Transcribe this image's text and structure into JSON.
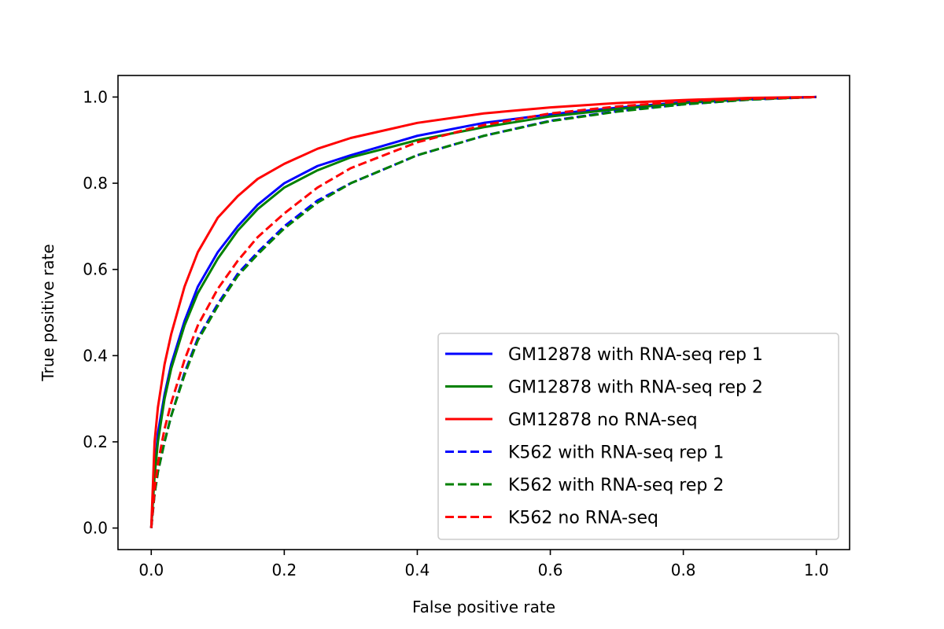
{
  "chart_data": {
    "type": "line",
    "title": "",
    "xlabel": "False positive rate",
    "ylabel": "True positive rate",
    "xlim": [
      -0.05,
      1.05
    ],
    "ylim": [
      -0.05,
      1.05
    ],
    "xticks": [
      0.0,
      0.2,
      0.4,
      0.6,
      0.8,
      1.0
    ],
    "yticks": [
      0.0,
      0.2,
      0.4,
      0.6,
      0.8,
      1.0
    ],
    "xtick_labels": [
      "0.0",
      "0.2",
      "0.4",
      "0.6",
      "0.8",
      "1.0"
    ],
    "ytick_labels": [
      "0.0",
      "0.2",
      "0.4",
      "0.6",
      "0.8",
      "1.0"
    ],
    "grid": false,
    "legend_position": "lower-right",
    "series": [
      {
        "name": "GM12878 with RNA-seq rep 1",
        "color": "#0000ff",
        "style": "solid",
        "x": [
          0,
          0.005,
          0.01,
          0.02,
          0.03,
          0.05,
          0.07,
          0.1,
          0.13,
          0.16,
          0.2,
          0.25,
          0.3,
          0.4,
          0.5,
          0.6,
          0.7,
          0.8,
          0.9,
          1.0
        ],
        "y": [
          0,
          0.13,
          0.22,
          0.31,
          0.38,
          0.48,
          0.56,
          0.64,
          0.7,
          0.75,
          0.8,
          0.84,
          0.865,
          0.91,
          0.94,
          0.96,
          0.975,
          0.988,
          0.996,
          1.0
        ]
      },
      {
        "name": "GM12878 with RNA-seq rep 2",
        "color": "#008000",
        "style": "solid",
        "x": [
          0,
          0.005,
          0.01,
          0.02,
          0.03,
          0.05,
          0.07,
          0.1,
          0.13,
          0.16,
          0.2,
          0.25,
          0.3,
          0.4,
          0.5,
          0.6,
          0.7,
          0.8,
          0.9,
          1.0
        ],
        "y": [
          0,
          0.12,
          0.2,
          0.3,
          0.37,
          0.47,
          0.545,
          0.625,
          0.69,
          0.74,
          0.79,
          0.83,
          0.86,
          0.9,
          0.93,
          0.955,
          0.972,
          0.986,
          0.995,
          1.0
        ]
      },
      {
        "name": "GM12878 no RNA-seq",
        "color": "#ff0000",
        "style": "solid",
        "x": [
          0,
          0.005,
          0.01,
          0.02,
          0.03,
          0.05,
          0.07,
          0.1,
          0.13,
          0.16,
          0.2,
          0.25,
          0.3,
          0.4,
          0.5,
          0.6,
          0.7,
          0.8,
          0.9,
          1.0
        ],
        "y": [
          0,
          0.2,
          0.28,
          0.38,
          0.45,
          0.56,
          0.64,
          0.72,
          0.77,
          0.81,
          0.845,
          0.88,
          0.905,
          0.94,
          0.962,
          0.976,
          0.986,
          0.993,
          0.998,
          1.0
        ]
      },
      {
        "name": "K562 with RNA-seq rep 1",
        "color": "#0000ff",
        "style": "dashed",
        "x": [
          0,
          0.005,
          0.01,
          0.02,
          0.03,
          0.05,
          0.07,
          0.1,
          0.13,
          0.16,
          0.2,
          0.25,
          0.3,
          0.4,
          0.5,
          0.6,
          0.7,
          0.8,
          0.9,
          1.0
        ],
        "y": [
          0,
          0.08,
          0.13,
          0.2,
          0.26,
          0.36,
          0.44,
          0.52,
          0.59,
          0.64,
          0.7,
          0.76,
          0.8,
          0.865,
          0.91,
          0.945,
          0.967,
          0.983,
          0.994,
          1.0
        ]
      },
      {
        "name": "K562 with RNA-seq rep 2",
        "color": "#008000",
        "style": "dashed",
        "x": [
          0,
          0.005,
          0.01,
          0.02,
          0.03,
          0.05,
          0.07,
          0.1,
          0.13,
          0.16,
          0.2,
          0.25,
          0.3,
          0.4,
          0.5,
          0.6,
          0.7,
          0.8,
          0.9,
          1.0
        ],
        "y": [
          0,
          0.08,
          0.13,
          0.2,
          0.26,
          0.355,
          0.435,
          0.515,
          0.585,
          0.635,
          0.695,
          0.755,
          0.8,
          0.865,
          0.91,
          0.944,
          0.966,
          0.983,
          0.994,
          1.0
        ]
      },
      {
        "name": "K562 no RNA-seq",
        "color": "#ff0000",
        "style": "dashed",
        "x": [
          0,
          0.005,
          0.01,
          0.02,
          0.03,
          0.05,
          0.07,
          0.1,
          0.13,
          0.16,
          0.2,
          0.25,
          0.3,
          0.4,
          0.5,
          0.6,
          0.7,
          0.8,
          0.9,
          1.0
        ],
        "y": [
          0,
          0.09,
          0.15,
          0.23,
          0.29,
          0.39,
          0.47,
          0.555,
          0.62,
          0.675,
          0.73,
          0.79,
          0.835,
          0.895,
          0.935,
          0.962,
          0.978,
          0.99,
          0.996,
          1.0
        ]
      }
    ]
  }
}
